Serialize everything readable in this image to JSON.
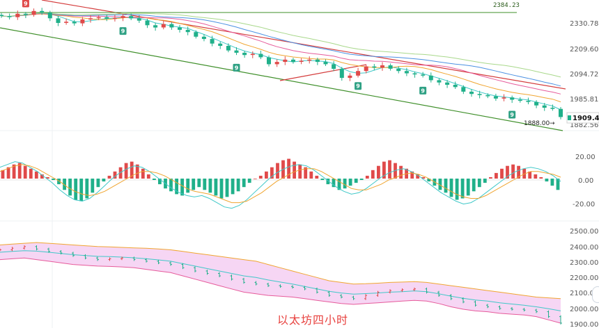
{
  "caption": "以太坊四小时",
  "colors": {
    "up": "#e04a4a",
    "down": "#20b08a",
    "badge": "#2fa184",
    "ma_short": "#3fc8c8",
    "ma_mid": "#f0a530",
    "ma_long1": "#e65a9a",
    "ma_long2": "#4a90e2",
    "ma_long3": "#a8d88a",
    "trend_red": "#d43c3c",
    "trend_green": "#3f8f2a",
    "boll_fill": "#f6d6f4",
    "boll_upper": "#f0a530",
    "boll_lower": "#e65a9a",
    "boll_mid": "#3fc8c8",
    "macd_dif": "#3fc8c8",
    "macd_dea": "#f0a530"
  },
  "chart_data": [
    {
      "type": "candlestick",
      "panel": "price",
      "y_ticks": [
        "2330.78",
        "2209.60",
        "2094.72",
        "1985.81",
        "1882.56"
      ],
      "ylim": [
        1850,
        2420
      ],
      "close_series": [
        2350,
        2345,
        2360,
        2355,
        2372,
        2365,
        2340,
        2320,
        2325,
        2318,
        2335,
        2340,
        2345,
        2338,
        2342,
        2350,
        2340,
        2330,
        2310,
        2300,
        2315,
        2300,
        2290,
        2280,
        2260,
        2250,
        2230,
        2220,
        2200,
        2190,
        2180,
        2185,
        2170,
        2140,
        2150,
        2160,
        2150,
        2155,
        2160,
        2150,
        2140,
        2120,
        2080,
        2090,
        2110,
        2130,
        2125,
        2135,
        2120,
        2110,
        2100,
        2095,
        2090,
        2070,
        2060,
        2050,
        2040,
        2020,
        2010,
        2005,
        2000,
        1990,
        1995,
        1985,
        1980,
        1975,
        1960,
        1950,
        1945,
        1909.41
      ],
      "horizontal_lines": [
        {
          "value": "2384.23"
        }
      ],
      "annotations": [
        {
          "text": "1888.00"
        }
      ],
      "current_price": "1909.41",
      "sequential_badges": [
        {
          "label": "9",
          "color": "up"
        },
        {
          "label": "9",
          "color": "down"
        },
        {
          "label": "9",
          "color": "down"
        },
        {
          "label": "9",
          "color": "down"
        },
        {
          "label": "9",
          "color": "down"
        },
        {
          "label": "9",
          "color": "down"
        }
      ],
      "moving_averages": [
        "ma_short",
        "ma_mid",
        "ma_long1",
        "ma_long2",
        "ma_long3"
      ],
      "trend_lines": [
        "trend_red",
        "trend_green"
      ]
    },
    {
      "type": "bar",
      "panel": "macd",
      "y_ticks": [
        "20.00",
        "0.00",
        "-20.00"
      ],
      "ylim": [
        -30,
        30
      ],
      "histogram": [
        6,
        8,
        10,
        11,
        9,
        7,
        5,
        3,
        1,
        -1,
        -4,
        -8,
        -12,
        -15,
        -16,
        -14,
        -10,
        -6,
        -2,
        2,
        5,
        8,
        11,
        12,
        10,
        7,
        3,
        -1,
        -4,
        -7,
        -9,
        -11,
        -12,
        -10,
        -8,
        -6,
        -8,
        -10,
        -12,
        -14,
        -13,
        -11,
        -9,
        -6,
        -3,
        0,
        2,
        5,
        8,
        11,
        13,
        14,
        12,
        10,
        8,
        5,
        2,
        -1,
        -4,
        -6,
        -8,
        -7,
        -5,
        -3,
        -1,
        2,
        6,
        9,
        12,
        13,
        11,
        9,
        7,
        5,
        3,
        1,
        -2,
        -5,
        -8,
        -10,
        -13,
        -15,
        -14,
        -12,
        -9,
        -6,
        -3,
        1,
        4,
        7,
        9,
        10,
        9,
        7,
        5,
        3,
        1,
        -2,
        -5,
        -8
      ],
      "dif": [
        8,
        10,
        12,
        11,
        8,
        5,
        1,
        -3,
        -8,
        -12,
        -15,
        -16,
        -14,
        -10,
        -5,
        0,
        4,
        7,
        9,
        8,
        5,
        1,
        -3,
        -7,
        -10,
        -12,
        -13,
        -12,
        -14,
        -17,
        -20,
        -21,
        -19,
        -15,
        -10,
        -5,
        0,
        4,
        7,
        9,
        10,
        9,
        6,
        2,
        -2,
        -6,
        -9,
        -11,
        -10,
        -7,
        -3,
        1,
        4,
        6,
        7,
        5,
        2,
        -2,
        -6,
        -10,
        -13,
        -16,
        -18,
        -17,
        -14,
        -10,
        -6,
        -2,
        2,
        5,
        7,
        8,
        7,
        5,
        2,
        -2
      ],
      "dea": [
        5,
        7,
        9,
        10,
        9,
        7,
        4,
        1,
        -2,
        -6,
        -9,
        -11,
        -12,
        -11,
        -9,
        -6,
        -3,
        0,
        3,
        5,
        5,
        4,
        2,
        -1,
        -4,
        -7,
        -9,
        -10,
        -11,
        -13,
        -15,
        -17,
        -17,
        -16,
        -13,
        -10,
        -6,
        -2,
        1,
        4,
        6,
        7,
        7,
        5,
        2,
        -1,
        -4,
        -7,
        -8,
        -8,
        -6,
        -4,
        -1,
        1,
        3,
        4,
        3,
        1,
        -2,
        -5,
        -8,
        -11,
        -13,
        -14,
        -14,
        -12,
        -9,
        -6,
        -3,
        0,
        3,
        5,
        5,
        4,
        3,
        1
      ]
    },
    {
      "type": "line",
      "panel": "bollinger",
      "y_ticks": [
        "2500.00",
        "2400.00",
        "2300.00",
        "2200.00",
        "2100.00",
        "2000.00",
        "1900.00"
      ],
      "ylim": [
        1880,
        2520
      ],
      "upper": [
        2390,
        2395,
        2400,
        2405,
        2400,
        2395,
        2390,
        2385,
        2380,
        2378,
        2375,
        2372,
        2370,
        2365,
        2360,
        2350,
        2340,
        2330,
        2320,
        2310,
        2300,
        2290,
        2270,
        2250,
        2230,
        2210,
        2190,
        2170,
        2160,
        2150,
        2152,
        2155,
        2160,
        2162,
        2165,
        2160,
        2150,
        2140,
        2130,
        2120,
        2110,
        2100,
        2090,
        2080,
        2070,
        2065,
        2060
      ],
      "lower": [
        2300,
        2305,
        2310,
        2300,
        2290,
        2280,
        2270,
        2265,
        2260,
        2258,
        2255,
        2250,
        2240,
        2230,
        2220,
        2200,
        2180,
        2160,
        2140,
        2120,
        2100,
        2090,
        2080,
        2075,
        2070,
        2060,
        2050,
        2040,
        2030,
        2025,
        2030,
        2035,
        2040,
        2045,
        2050,
        2045,
        2030,
        2010,
        1995,
        1985,
        1980,
        1970,
        1965,
        1960,
        1950,
        1930,
        1910
      ],
      "middle": [
        2345,
        2350,
        2355,
        2352,
        2345,
        2338,
        2330,
        2325,
        2320,
        2318,
        2315,
        2311,
        2305,
        2298,
        2290,
        2275,
        2260,
        2245,
        2230,
        2215,
        2200,
        2190,
        2175,
        2162,
        2150,
        2135,
        2120,
        2105,
        2095,
        2088,
        2091,
        2095,
        2100,
        2103,
        2108,
        2103,
        2090,
        2075,
        2062,
        2052,
        2045,
        2035,
        2027,
        2020,
        2010,
        1998,
        1985
      ],
      "close": [
        2360,
        2370,
        2380,
        2365,
        2350,
        2340,
        2325,
        2310,
        2300,
        2305,
        2310,
        2300,
        2290,
        2280,
        2270,
        2250,
        2230,
        2215,
        2200,
        2180,
        2160,
        2150,
        2140,
        2135,
        2130,
        2120,
        2100,
        2080,
        2070,
        2060,
        2080,
        2100,
        2110,
        2115,
        2120,
        2100,
        2080,
        2060,
        2040,
        2020,
        2010,
        2000,
        1995,
        1990,
        1980,
        1950,
        1910
      ]
    }
  ]
}
